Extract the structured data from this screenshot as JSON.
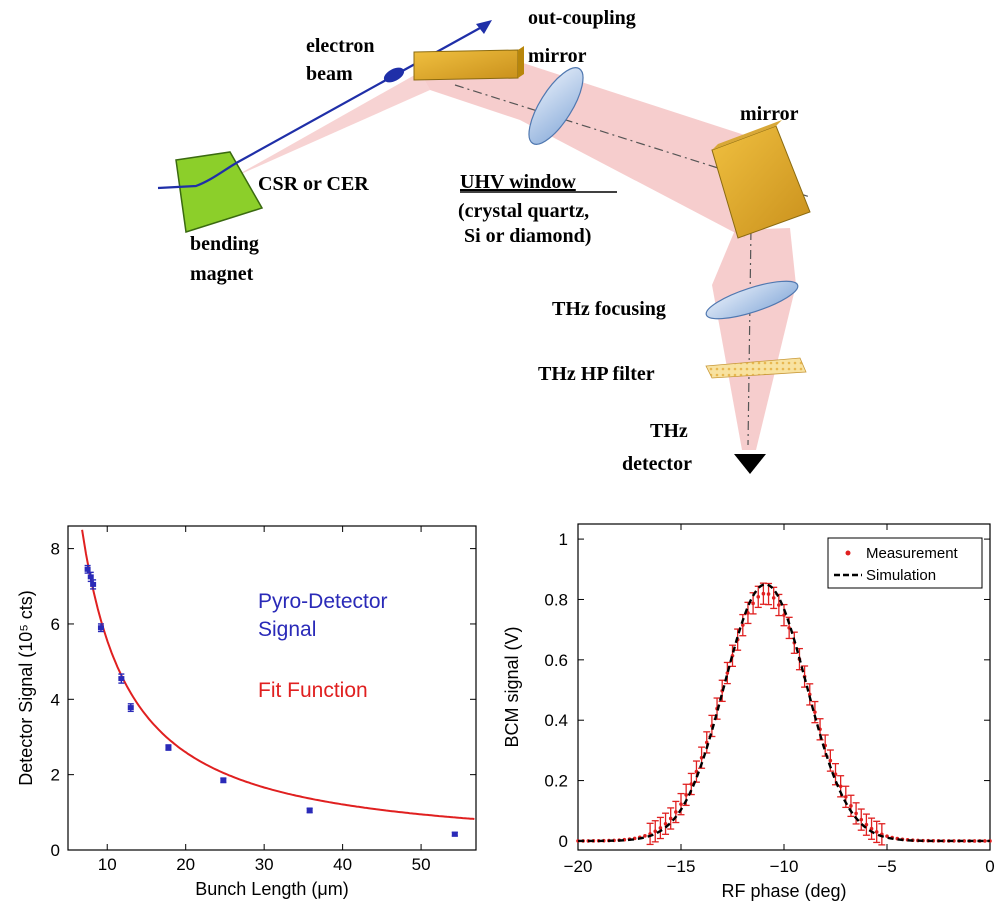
{
  "diagram": {
    "labels": {
      "electron_beam": [
        "electron",
        "beam"
      ],
      "out_coupling_mirror": [
        "out-coupling",
        "mirror"
      ],
      "mirror": "mirror",
      "csr": "CSR or CER",
      "uhv_window": "UHV window",
      "uhv_materials": [
        "(crystal quartz,",
        "Si or diamond)"
      ],
      "bending_magnet": [
        "bending",
        "magnet"
      ],
      "thz_focusing": "THz focusing",
      "thz_hp_filter": "THz HP filter",
      "thz_detector": [
        "THz",
        "detector"
      ]
    },
    "colors": {
      "beam": "#1f2fa8",
      "magnet": "#8ccf2a",
      "mirror_gold": "#e0b020",
      "light": "#f2b8b8",
      "lens": "#a8c4e8"
    }
  },
  "chart_data": [
    {
      "type": "scatter",
      "xlabel": "Bunch Length (μm)",
      "ylabel": "Detector Signal (10⁵ cts)",
      "xlim": [
        5,
        57
      ],
      "ylim": [
        0,
        8.6
      ],
      "xticks": [
        10,
        20,
        30,
        40,
        50
      ],
      "yticks": [
        0,
        2,
        4,
        6,
        8
      ],
      "grid": false,
      "annotations": [
        {
          "text": "Pyro-Detector",
          "color": "#2a2ab8"
        },
        {
          "text": "Signal",
          "color": "#2a2ab8"
        },
        {
          "text": "Fit Function",
          "color": "#e02020"
        }
      ],
      "series": [
        {
          "kind": "points",
          "color": "#2a2ab8",
          "x": [
            7.5,
            7.9,
            8.2,
            9.2,
            11.8,
            13.0,
            17.8,
            24.8,
            35.8,
            54.3
          ],
          "y": [
            7.45,
            7.25,
            7.05,
            5.9,
            4.55,
            3.78,
            2.72,
            1.85,
            1.05,
            0.42
          ],
          "err": [
            0.1,
            0.12,
            0.12,
            0.1,
            0.12,
            0.1,
            0.07,
            0.06,
            0.06,
            0.05
          ]
        },
        {
          "kind": "fit",
          "color": "#e02020",
          "form": "a / x^p",
          "a": 70,
          "p": 1.1,
          "x_range": [
            6.8,
            57
          ]
        }
      ]
    },
    {
      "type": "line",
      "xlabel": "RF phase (deg)",
      "ylabel": "BCM signal (V)",
      "xlim": [
        -20,
        0
      ],
      "ylim": [
        -0.03,
        1.05
      ],
      "xticks": [
        -20,
        -15,
        -10,
        -5,
        0
      ],
      "yticks": [
        0,
        0.2,
        0.4,
        0.6,
        0.8,
        1
      ],
      "xticklabels": [
        "−20",
        "−15",
        "−10",
        "−5",
        "0"
      ],
      "yticklabels": [
        "0",
        "0.2",
        "0.4",
        "0.6",
        "0.8",
        "1"
      ],
      "grid": false,
      "legend": "top-right",
      "series": [
        {
          "name": "Measurement",
          "color": "#e02020",
          "marker": "point-with-errorbar",
          "model": {
            "peak": 0.82,
            "center": -10.9,
            "sigma": 2.1,
            "baseline": 0.0
          },
          "x_start": -20,
          "x_end": 0,
          "x_step": 0.25,
          "errorbar": 0.035
        },
        {
          "name": "Simulation",
          "color": "#000000",
          "style": "dashed",
          "model": {
            "peak": 0.85,
            "center": -10.9,
            "sigma": 2.0,
            "baseline": 0.0
          }
        }
      ]
    }
  ]
}
